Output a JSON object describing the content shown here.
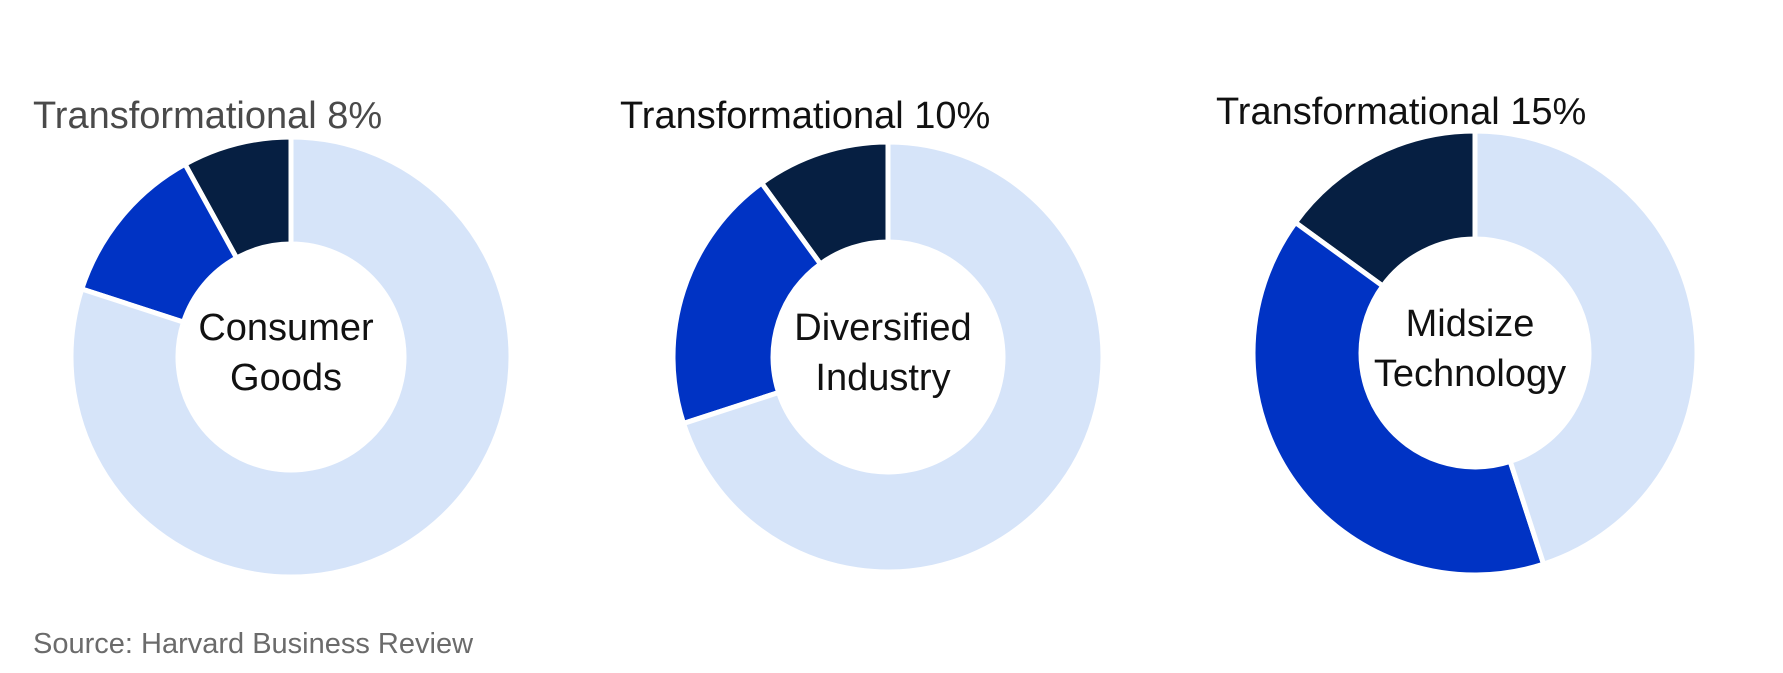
{
  "chart_data": [
    {
      "type": "pie",
      "variant": "donut",
      "center_label": [
        "Consumer",
        "Goods"
      ],
      "annotation": "Transformational 8%",
      "slices": [
        {
          "value": 8,
          "color": "#061f42"
        },
        {
          "value": 12,
          "color": "#0033c4"
        },
        {
          "value": 80,
          "color": "#d6e4f9"
        }
      ]
    },
    {
      "type": "pie",
      "variant": "donut",
      "center_label": [
        "Diversified",
        "Industry"
      ],
      "annotation": "Transformational 10%",
      "slices": [
        {
          "value": 10,
          "color": "#061f42"
        },
        {
          "value": 20,
          "color": "#0033c4"
        },
        {
          "value": 70,
          "color": "#d6e4f9"
        }
      ]
    },
    {
      "type": "pie",
      "variant": "donut",
      "center_label": [
        "Midsize",
        "Technology"
      ],
      "annotation": "Transformational 15%",
      "slices": [
        {
          "value": 15,
          "color": "#061f42"
        },
        {
          "value": 40,
          "color": "#0033c4"
        },
        {
          "value": 45,
          "color": "#d6e4f9"
        }
      ]
    }
  ],
  "source": "Source: Harvard Business Review",
  "colors": {
    "annotation_first": "#4a4a4a",
    "annotation_others": "#111111"
  }
}
